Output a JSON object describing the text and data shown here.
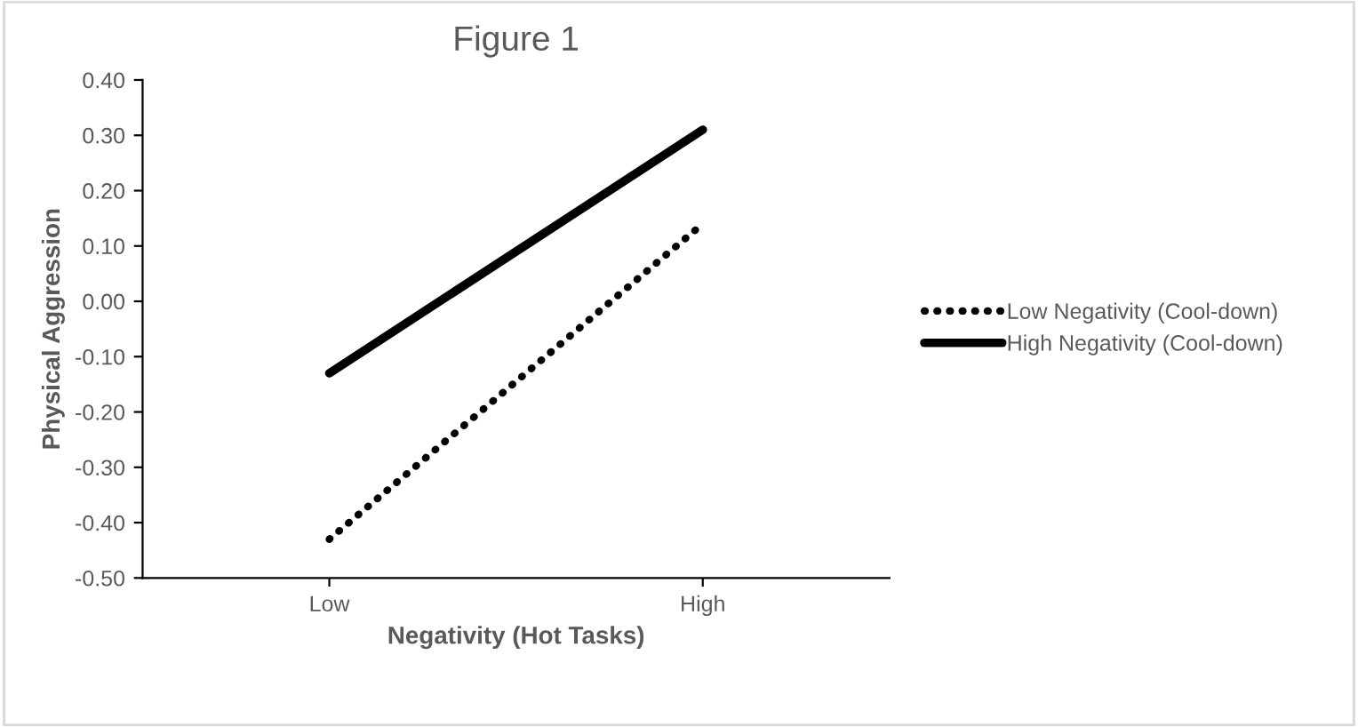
{
  "chart_data": {
    "type": "line",
    "title": "Figure 1",
    "xlabel": "Negativity (Hot Tasks)",
    "ylabel": "Physical Aggression",
    "categories": [
      "Low",
      "High"
    ],
    "series": [
      {
        "name": "Low Negativity (Cool-down)",
        "color": "#000000",
        "values": [
          -0.43,
          0.14
        ],
        "line_style": "dotted"
      },
      {
        "name": "High Negativity (Cool-down)",
        "color": "#000000",
        "values": [
          -0.13,
          0.31
        ],
        "line_style": "solid"
      }
    ],
    "ylim": [
      -0.5,
      0.4
    ],
    "yticks": [
      {
        "value": -0.5,
        "label": "-0.50"
      },
      {
        "value": -0.4,
        "label": "-0.40"
      },
      {
        "value": -0.3,
        "label": "-0.30"
      },
      {
        "value": -0.2,
        "label": "-0.20"
      },
      {
        "value": -0.1,
        "label": "-0.10"
      },
      {
        "value": 0,
        "label": "0.00"
      },
      {
        "value": 0.1,
        "label": "0.10"
      },
      {
        "value": 0.2,
        "label": "0.20"
      },
      {
        "value": 0.3,
        "label": "0.30"
      },
      {
        "value": 0.4,
        "label": "0.40"
      }
    ],
    "grid": false,
    "legend": "right",
    "marker": "none"
  }
}
